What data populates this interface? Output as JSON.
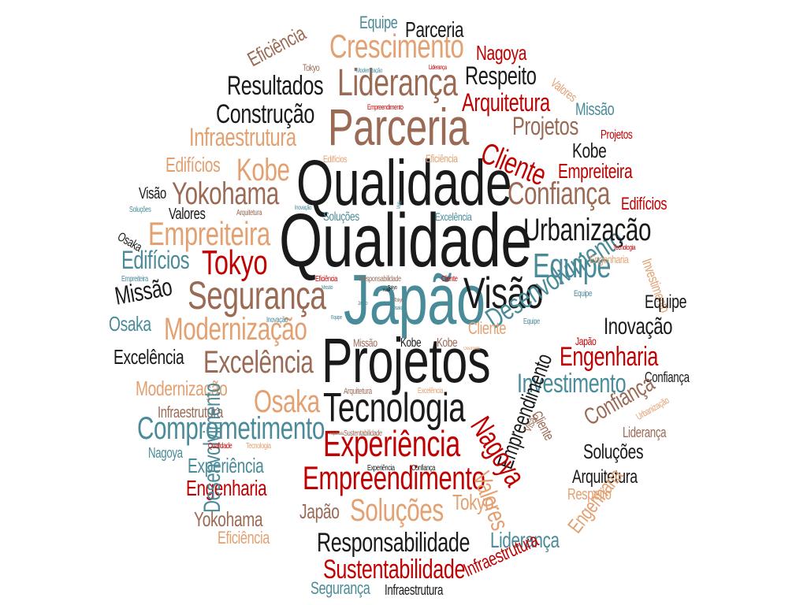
{
  "colors": {
    "dark": "#1a1a1a",
    "brown": "#9a6a55",
    "orange": "#e3a071",
    "red": "#c00000",
    "teal": "#4a8b99"
  },
  "words": [
    {
      "text": "Qualidade",
      "color": "dark"
    },
    {
      "text": "Qualidade",
      "color": "dark"
    },
    {
      "text": "Projetos",
      "color": "dark"
    },
    {
      "text": "Japão",
      "color": "teal"
    },
    {
      "text": "Parceria",
      "color": "brown"
    },
    {
      "text": "Tecnologia",
      "color": "dark"
    },
    {
      "text": "Visão",
      "color": "dark"
    },
    {
      "text": "Segurança",
      "color": "brown"
    },
    {
      "text": "Liderança",
      "color": "brown"
    },
    {
      "text": "Crescimento",
      "color": "orange"
    },
    {
      "text": "Desenvolvimento",
      "color": "teal"
    },
    {
      "text": "Experiência",
      "color": "red"
    },
    {
      "text": "Empreendimento",
      "color": "red"
    },
    {
      "text": "Modernização",
      "color": "orange"
    },
    {
      "text": "Excelência",
      "color": "brown"
    },
    {
      "text": "Comprometimento",
      "color": "teal"
    },
    {
      "text": "Empreiteira",
      "color": "orange"
    },
    {
      "text": "Tokyo",
      "color": "red"
    },
    {
      "text": "Yokohama",
      "color": "brown"
    },
    {
      "text": "Kobe",
      "color": "orange"
    },
    {
      "text": "Urbanização",
      "color": "dark"
    },
    {
      "text": "Equipe",
      "color": "teal"
    },
    {
      "text": "Confiança",
      "color": "brown"
    },
    {
      "text": "Cliente",
      "color": "red"
    },
    {
      "text": "Projetos",
      "color": "brown"
    },
    {
      "text": "Arquitetura",
      "color": "red"
    },
    {
      "text": "Respeito",
      "color": "dark"
    },
    {
      "text": "Nagoya",
      "color": "red"
    },
    {
      "text": "Parceria",
      "color": "dark"
    },
    {
      "text": "Resultados",
      "color": "dark"
    },
    {
      "text": "Construção",
      "color": "dark"
    },
    {
      "text": "Infraestrutura",
      "color": "orange"
    },
    {
      "text": "Edifícios",
      "color": "orange"
    },
    {
      "text": "Eficiência",
      "color": "brown"
    },
    {
      "text": "Equipe",
      "color": "teal"
    },
    {
      "text": "Missão",
      "color": "teal"
    },
    {
      "text": "Kobe",
      "color": "dark"
    },
    {
      "text": "Empreiteira",
      "color": "red"
    },
    {
      "text": "Edifícios",
      "color": "red"
    },
    {
      "text": "Projetos",
      "color": "red"
    },
    {
      "text": "Valores",
      "color": "orange"
    },
    {
      "text": "Investimento",
      "color": "orange"
    },
    {
      "text": "Equipe",
      "color": "dark"
    },
    {
      "text": "Inovação",
      "color": "dark"
    },
    {
      "text": "Engenharia",
      "color": "red"
    },
    {
      "text": "Investimento",
      "color": "teal"
    },
    {
      "text": "Confiança",
      "color": "dark"
    },
    {
      "text": "Confiança",
      "color": "brown"
    },
    {
      "text": "Soluções",
      "color": "dark"
    },
    {
      "text": "Arquitetura",
      "color": "dark"
    },
    {
      "text": "Respeito",
      "color": "orange"
    },
    {
      "text": "Engenharia",
      "color": "orange"
    },
    {
      "text": "Liderança",
      "color": "brown"
    },
    {
      "text": "Urbanização",
      "color": "orange"
    },
    {
      "text": "Empreendimento",
      "color": "dark"
    },
    {
      "text": "Nagoya",
      "color": "red"
    },
    {
      "text": "Valores",
      "color": "orange"
    },
    {
      "text": "Cliente",
      "color": "brown"
    },
    {
      "text": "Edifícios",
      "color": "teal"
    },
    {
      "text": "Missão",
      "color": "dark"
    },
    {
      "text": "Osaka",
      "color": "teal"
    },
    {
      "text": "Excelência",
      "color": "dark"
    },
    {
      "text": "Modernização",
      "color": "orange"
    },
    {
      "text": "Infraestrutura",
      "color": "brown"
    },
    {
      "text": "Nagoya",
      "color": "teal"
    },
    {
      "text": "Experiência",
      "color": "teal"
    },
    {
      "text": "Engenharia",
      "color": "red"
    },
    {
      "text": "Yokohama",
      "color": "brown"
    },
    {
      "text": "Eficiência",
      "color": "orange"
    },
    {
      "text": "Desenvolvimento",
      "color": "teal"
    },
    {
      "text": "Japão",
      "color": "brown"
    },
    {
      "text": "Soluções",
      "color": "orange"
    },
    {
      "text": "Tokyo",
      "color": "orange"
    },
    {
      "text": "Responsabilidade",
      "color": "dark"
    },
    {
      "text": "Liderança",
      "color": "teal"
    },
    {
      "text": "Sustentabilidade",
      "color": "red"
    },
    {
      "text": "Segurança",
      "color": "teal"
    },
    {
      "text": "Infraestrutura",
      "color": "dark"
    },
    {
      "text": "Infraestrutura",
      "color": "red"
    },
    {
      "text": "Osaka",
      "color": "orange"
    },
    {
      "text": "Visão",
      "color": "dark"
    },
    {
      "text": "Valores",
      "color": "dark"
    },
    {
      "text": "Osaka",
      "color": "dark"
    },
    {
      "text": "Soluções",
      "color": "teal"
    },
    {
      "text": "Arquitetura",
      "color": "brown"
    },
    {
      "text": "Tokyo",
      "color": "brown"
    },
    {
      "text": "Equipe",
      "color": "teal"
    },
    {
      "text": "Empreiteira",
      "color": "teal"
    },
    {
      "text": "Excelência",
      "color": "teal"
    },
    {
      "text": "Engenharia",
      "color": "orange"
    },
    {
      "text": "Edifícios",
      "color": "orange"
    },
    {
      "text": "Eficiência",
      "color": "brown"
    },
    {
      "text": "Kobe",
      "color": "dark"
    },
    {
      "text": "Kobe",
      "color": "brown"
    },
    {
      "text": "Missão",
      "color": "brown"
    },
    {
      "text": "Cliente",
      "color": "orange"
    },
    {
      "text": "Japão",
      "color": "red"
    },
    {
      "text": "Equipe",
      "color": "teal"
    },
    {
      "text": "Arquitetura",
      "color": "brown"
    },
    {
      "text": "Excelência",
      "color": "orange"
    },
    {
      "text": "Sustentabilidade",
      "color": "brown"
    },
    {
      "text": "Qualidade",
      "color": "red"
    },
    {
      "text": "Tecnologia",
      "color": "orange"
    },
    {
      "text": "Experiência",
      "color": "dark"
    },
    {
      "text": "Confiança",
      "color": "dark"
    },
    {
      "text": "Responsabilidade",
      "color": "brown"
    },
    {
      "text": "Eficiência",
      "color": "red"
    },
    {
      "text": "Tokyo",
      "color": "dark"
    },
    {
      "text": "Cliente",
      "color": "red"
    },
    {
      "text": "Inovação",
      "color": "teal"
    },
    {
      "text": "Tokyo",
      "color": "brown"
    },
    {
      "text": "Modernização",
      "color": "teal"
    },
    {
      "text": "Liderança",
      "color": "red"
    },
    {
      "text": "Empreendimento",
      "color": "red"
    },
    {
      "text": "Tecnologia",
      "color": "red"
    },
    {
      "text": "Missão",
      "color": "teal"
    },
    {
      "text": "Equipe",
      "color": "teal"
    },
    {
      "text": "Crescimento",
      "color": "orange"
    },
    {
      "text": "Visão",
      "color": "teal"
    },
    {
      "text": "Arquitetura",
      "color": "brown"
    },
    {
      "text": "Kobe",
      "color": "dark"
    },
    {
      "text": "Soluções",
      "color": "teal"
    },
    {
      "text": "Inovação",
      "color": "teal"
    },
    {
      "text": "Japão",
      "color": "teal"
    },
    {
      "text": "Osaka",
      "color": "teal"
    },
    {
      "text": "Visão",
      "color": "brown"
    }
  ]
}
